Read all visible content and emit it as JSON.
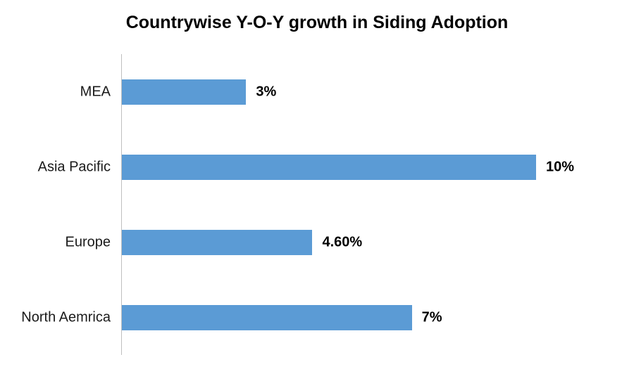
{
  "chart_data": {
    "type": "bar",
    "orientation": "horizontal",
    "title": "Countrywise Y-O-Y growth in Siding Adoption",
    "categories": [
      "MEA",
      "Asia Pacific",
      "Europe",
      "North Aemrica"
    ],
    "values": [
      3,
      10,
      4.6,
      7
    ],
    "value_labels": [
      "3%",
      "10%",
      "4.60%",
      "7%"
    ],
    "xlabel": "",
    "ylabel": "",
    "xlim": [
      0,
      10.5
    ],
    "grid": false,
    "legend": "none",
    "bar_color": "#5B9BD5",
    "axis_line_color": "#BFBFBF",
    "title_color": "#000000",
    "label_color": "#1a1a1a",
    "value_label_color": "#000000",
    "background_color": "#ffffff"
  }
}
